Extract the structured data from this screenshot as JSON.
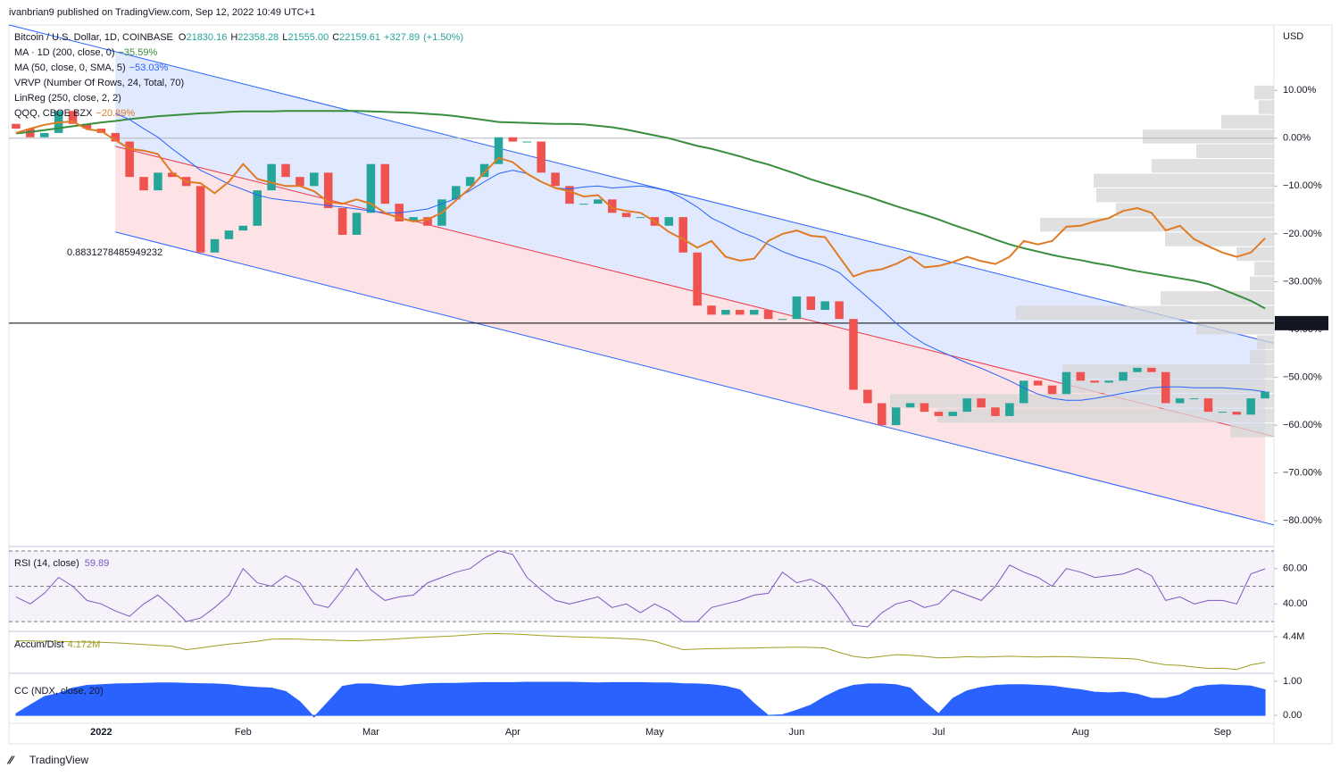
{
  "publisher": "ivanbrian9 published on TradingView.com, Sep 12, 2022 10:49 UTC+1",
  "footer_logo": "TradingView",
  "chart_data": [
    {
      "type": "candlestick",
      "title": "Bitcoin / U.S. Dollar, 1D, COINBASE",
      "ohlc": [
        {
          "label": "O",
          "value": "21830.16"
        },
        {
          "label": "H",
          "value": "22358.28"
        },
        {
          "label": "L",
          "value": "21555.00"
        },
        {
          "label": "C",
          "value": "22159.61"
        }
      ],
      "change": "+327.89",
      "change_pct": "(+1.50%)",
      "currency": "USD",
      "categories": [
        null,
        null,
        null,
        null,
        null,
        null,
        "2022",
        null,
        null,
        null,
        null,
        null,
        null,
        null,
        null,
        null,
        "Feb",
        null,
        null,
        null,
        null,
        null,
        null,
        null,
        null,
        "Mar",
        null,
        null,
        null,
        null,
        null,
        null,
        null,
        null,
        null,
        "Apr",
        null,
        null,
        null,
        null,
        null,
        null,
        null,
        null,
        null,
        "May",
        null,
        null,
        null,
        null,
        null,
        null,
        null,
        null,
        null,
        "Jun",
        null,
        null,
        null,
        null,
        null,
        null,
        null,
        null,
        null,
        "Jul",
        null,
        null,
        null,
        null,
        null,
        null,
        null,
        null,
        null,
        "Aug",
        null,
        null,
        null,
        null,
        null,
        null,
        null,
        null,
        null,
        "Sep",
        null,
        null,
        null
      ],
      "open": [
        3.0,
        2.0,
        0.2,
        1.1,
        5.7,
        3.0,
        2.0,
        1.1,
        -0.7,
        -8.1,
        -10.9,
        -7.2,
        -8.1,
        -10,
        -23.9,
        -21.1,
        -19.3,
        -18.3,
        -10.9,
        -5.4,
        -8.1,
        -10,
        -7.2,
        -14.6,
        -20.2,
        -15.6,
        -5.4,
        -13.7,
        -17.4,
        -16.5,
        -18.3,
        -12.8,
        -10,
        -8.1,
        -5.4,
        0.2,
        -0.7,
        -0.7,
        -7.2,
        -10,
        -13.7,
        -13.7,
        -12.8,
        -15.6,
        -16.5,
        -16.5,
        -18.3,
        -16.5,
        -23.9,
        -35,
        -36.9,
        -35.9,
        -36.9,
        -35.9,
        -37.8,
        -37.8,
        -33.1,
        -35.9,
        -34.1,
        -37.8,
        -52.6,
        -55.4,
        -60,
        -56.3,
        -55.4,
        -57.2,
        -58.1,
        -57.2,
        -54.4,
        -56.3,
        -58.1,
        -55.4,
        -50.7,
        -51.7,
        -53.5,
        -48.9,
        -50.7,
        -51.1,
        -50.7,
        -48.9,
        -48,
        -48.9,
        -55.4,
        -54.4,
        -54.4,
        -57.2,
        -57.2,
        -57.8,
        -54.4
      ],
      "close": [
        2.0,
        0.2,
        1.1,
        5.7,
        3.0,
        2.0,
        1.1,
        -0.7,
        -8.1,
        -10.9,
        -7.2,
        -8.1,
        -10,
        -23.9,
        -21.1,
        -19.3,
        -18.3,
        -10.9,
        -5.4,
        -8.1,
        -10,
        -7.2,
        -14.6,
        -20.2,
        -15.6,
        -5.4,
        -13.7,
        -17.4,
        -16.5,
        -18.3,
        -12.8,
        -10,
        -8.1,
        -5.4,
        0.2,
        -0.7,
        -0.7,
        -7.2,
        -10,
        -13.7,
        -13.7,
        -12.8,
        -15.6,
        -16.5,
        -16.5,
        -18.3,
        -16.5,
        -23.9,
        -35,
        -36.9,
        -35.9,
        -36.9,
        -35.9,
        -37.8,
        -37.8,
        -33.1,
        -35.9,
        -34.1,
        -37.8,
        -52.6,
        -55.4,
        -60,
        -56.3,
        -55.4,
        -57.2,
        -58.1,
        -57.2,
        -54.4,
        -56.3,
        -58.1,
        -55.4,
        -50.7,
        -51.7,
        -53.5,
        -48.9,
        -50.7,
        -51.1,
        -50.7,
        -48.9,
        -48,
        -48.9,
        -55.4,
        -54.4,
        -54.4,
        -57.2,
        -57.2,
        -57.8,
        -54.4,
        -53
      ],
      "up_color": "#26a69a",
      "down_color": "#ef5350",
      "ylim": [
        -85,
        23.3
      ],
      "yticks": [
        {
          "value": 10,
          "label": "10.00%"
        },
        {
          "value": 0,
          "label": "0.00%"
        },
        {
          "value": -10,
          "label": "−10.00%"
        },
        {
          "value": -20,
          "label": "−20.00%"
        },
        {
          "value": -30,
          "label": "−30.00%"
        },
        {
          "value": -40,
          "label": "−40.00%"
        },
        {
          "value": -50,
          "label": "−50.00%"
        },
        {
          "value": -60,
          "label": "−60.00%"
        },
        {
          "value": -70,
          "label": "−70.00%"
        },
        {
          "value": -80,
          "label": "−80.00%"
        }
      ],
      "series": [
        {
          "name": "MA · 1D (200, close, 0)",
          "color": "#388e3c",
          "width": 2,
          "value_label": "−35.59%",
          "values": [
            1.0,
            1.3,
            1.7,
            2.1,
            2.5,
            2.9,
            3.3,
            3.6,
            4.0,
            4.3,
            4.6,
            4.8,
            5.0,
            5.2,
            5.3,
            5.5,
            5.6,
            5.6,
            5.6,
            5.7,
            5.7,
            5.7,
            5.7,
            5.7,
            5.7,
            5.6,
            5.5,
            5.4,
            5.3,
            5.1,
            4.9,
            4.6,
            4.2,
            3.8,
            3.4,
            3.3,
            3.2,
            3.1,
            3.0,
            3.0,
            2.9,
            2.6,
            2.3,
            1.8,
            1.2,
            0.6,
            0.0,
            -0.8,
            -1.6,
            -2.2,
            -3.0,
            -3.8,
            -4.7,
            -5.5,
            -6.5,
            -7.5,
            -8.6,
            -9.5,
            -10.4,
            -11.3,
            -12.2,
            -13.2,
            -14.2,
            -15.1,
            -16.0,
            -17.0,
            -18.1,
            -19.1,
            -20.1,
            -21.2,
            -22.2,
            -23.0,
            -23.7,
            -24.4,
            -25.0,
            -25.5,
            -26.1,
            -26.6,
            -27.2,
            -27.8,
            -28.3,
            -28.8,
            -29.3,
            -29.8,
            -30.5,
            -31.6,
            -32.8,
            -34.0,
            -35.59
          ]
        },
        {
          "name": "MA (50, close, 0, SMA, 5)",
          "color": "#2962ff",
          "width": 1,
          "value_label": "−53.03%",
          "values": [
            null,
            null,
            null,
            null,
            null,
            null,
            null,
            5.2,
            3.9,
            2,
            0.2,
            -2.2,
            -4.4,
            -6.7,
            -8.1,
            -9.6,
            -10.7,
            -11.9,
            -12.6,
            -13,
            -13.3,
            -13.7,
            -14.1,
            -14.4,
            -14.8,
            -15.2,
            -15.6,
            -15.6,
            -15.2,
            -14.8,
            -13.7,
            -12.6,
            -10.9,
            -9.1,
            -7.4,
            -6.7,
            -7.4,
            -9.1,
            -10.4,
            -10.6,
            -10.2,
            -10,
            -10.4,
            -10.2,
            -10,
            -10.4,
            -11.1,
            -12.6,
            -14.4,
            -16.7,
            -18.1,
            -19.6,
            -20.7,
            -22.2,
            -23.7,
            -24.8,
            -25.7,
            -26.7,
            -28.1,
            -30.7,
            -33.3,
            -35.9,
            -38.7,
            -41.1,
            -43,
            -44.4,
            -45.7,
            -47,
            -48.1,
            -49.4,
            -50.7,
            -52.2,
            -53.5,
            -54.4,
            -54.8,
            -54.8,
            -54.4,
            -53.9,
            -53.3,
            -52.8,
            -52.2,
            -52,
            -52,
            -52.2,
            -52.2,
            -52.2,
            -52.4,
            -52.6,
            -53.03
          ]
        },
        {
          "name": "QQQ, CBOE BZX",
          "color": "#e07b24",
          "width": 2,
          "value_label": "−20.89%",
          "values": [
            1.1,
            2,
            2.8,
            3.3,
            3.5,
            1.9,
            1.5,
            -0.4,
            -2.2,
            -2.6,
            -3.3,
            -7.2,
            -9.1,
            -9.4,
            -11.5,
            -9.1,
            -5.4,
            -8.5,
            -9.3,
            -10,
            -10,
            -11.1,
            -13.3,
            -13.7,
            -12.8,
            -13.7,
            -15.6,
            -16.7,
            -17.4,
            -17,
            -15.6,
            -13,
            -10.4,
            -7.2,
            -4.1,
            -5,
            -7.4,
            -9.1,
            -10.4,
            -11.1,
            -12.2,
            -11.9,
            -14.6,
            -15.2,
            -15.6,
            -17.4,
            -19.6,
            -21.1,
            -22.9,
            -21.5,
            -24.8,
            -25.6,
            -25.2,
            -21.5,
            -20,
            -19.3,
            -20.4,
            -20.7,
            -24.8,
            -28.9,
            -27.8,
            -27.4,
            -26.3,
            -24.8,
            -27,
            -26.7,
            -25.9,
            -24.8,
            -25.7,
            -26.3,
            -24.8,
            -21.5,
            -22.2,
            -21.5,
            -18.5,
            -18.3,
            -17.4,
            -16.7,
            -15.2,
            -14.6,
            -15.6,
            -19.3,
            -18.3,
            -21.1,
            -22.6,
            -23.9,
            -24.8,
            -23.9,
            -20.89
          ]
        }
      ],
      "vrvp": {
        "name": "VRVP (Number Of Rows, 24, Total, 70)",
        "range": [
          -62.6,
          11.1
        ],
        "color": "#d6d6d6",
        "rows": [
          22,
          17,
          59,
          147,
          87,
          137,
          202,
          199,
          177,
          262,
          122,
          42,
          22,
          27,
          127,
          289,
          87,
          19,
          27,
          237,
          237,
          430,
          377,
          49
        ]
      },
      "linreg": {
        "name": "LinReg (250, close, 2, 2)",
        "upper": [
          18.1,
          -42.4
        ],
        "mid": [
          -1.7,
          -61.9
        ],
        "lower": [
          -19.6,
          -80.4
        ],
        "pearson": 0.8831278485949232
      },
      "hline": {
        "value": -38.67,
        "label": "−38.67%"
      }
    },
    {
      "type": "line",
      "name": "RSI (14, close)",
      "color": "#7e57c2",
      "ylim": [
        25,
        72.5
      ],
      "bands": [
        30,
        50,
        70
      ],
      "yticks": [
        {
          "value": 60,
          "label": "60.00"
        },
        {
          "value": 40,
          "label": "40.00"
        }
      ],
      "values": [
        44,
        40,
        46,
        55,
        50,
        42,
        40,
        36,
        33,
        40,
        45,
        38,
        30,
        32,
        38,
        45,
        60,
        52,
        50,
        56,
        52,
        40,
        38,
        48,
        60,
        48,
        42,
        44,
        45,
        52,
        55,
        58,
        60,
        66,
        70,
        68,
        55,
        48,
        42,
        40,
        42,
        44,
        38,
        40,
        35,
        40,
        36,
        30,
        30,
        38,
        40,
        42,
        45,
        46,
        58,
        52,
        54,
        50,
        40,
        28,
        27,
        35,
        40,
        42,
        38,
        40,
        48,
        45,
        42,
        50,
        62,
        58,
        55,
        50,
        60,
        58,
        55,
        56,
        57,
        60,
        56,
        42,
        44,
        40,
        42,
        42,
        40,
        57,
        59.89
      ]
    },
    {
      "type": "line",
      "name": "Accum/Dist",
      "color": "#9e9d24",
      "ylim": [
        4.09,
        4.44
      ],
      "value_label": "4.172M",
      "yticks": [
        {
          "value": 4.4,
          "label": "4.4M"
        }
      ],
      "values": [
        4.364,
        4.362,
        4.36,
        4.358,
        4.355,
        4.352,
        4.35,
        4.345,
        4.338,
        4.33,
        4.322,
        4.316,
        4.285,
        4.3,
        4.318,
        4.334,
        4.345,
        4.36,
        4.378,
        4.38,
        4.378,
        4.372,
        4.37,
        4.366,
        4.364,
        4.37,
        4.375,
        4.382,
        4.39,
        4.396,
        4.402,
        4.408,
        4.418,
        4.426,
        4.428,
        4.424,
        4.418,
        4.41,
        4.405,
        4.4,
        4.396,
        4.392,
        4.388,
        4.382,
        4.376,
        4.36,
        4.32,
        4.285,
        4.29,
        4.294,
        4.296,
        4.298,
        4.3,
        4.302,
        4.305,
        4.307,
        4.305,
        4.3,
        4.26,
        4.225,
        4.21,
        4.225,
        4.24,
        4.235,
        4.225,
        4.212,
        4.215,
        4.222,
        4.218,
        4.222,
        4.226,
        4.222,
        4.22,
        4.224,
        4.222,
        4.218,
        4.214,
        4.21,
        4.206,
        4.2,
        4.17,
        4.15,
        4.145,
        4.13,
        4.118,
        4.12,
        4.108,
        4.15,
        4.172
      ]
    },
    {
      "type": "area",
      "name": "CC (NDX, close, 20)",
      "color": "#2962ff",
      "ylim": [
        -0.18,
        1.18
      ],
      "yticks": [
        {
          "value": 1,
          "label": "1.00"
        },
        {
          "value": 0,
          "label": "0.00"
        }
      ],
      "values": [
        0.05,
        0.3,
        0.55,
        0.65,
        0.8,
        0.88,
        0.9,
        0.92,
        0.93,
        0.94,
        0.95,
        0.95,
        0.94,
        0.93,
        0.92,
        0.9,
        0.85,
        0.82,
        0.8,
        0.7,
        0.4,
        -0.05,
        0.4,
        0.85,
        0.92,
        0.92,
        0.88,
        0.85,
        0.9,
        0.93,
        0.94,
        0.94,
        0.95,
        0.96,
        0.96,
        0.96,
        0.97,
        0.97,
        0.97,
        0.97,
        0.96,
        0.95,
        0.96,
        0.96,
        0.96,
        0.95,
        0.95,
        0.93,
        0.92,
        0.9,
        0.85,
        0.75,
        0.35,
        0.0,
        0.02,
        0.15,
        0.3,
        0.55,
        0.75,
        0.88,
        0.92,
        0.92,
        0.9,
        0.8,
        0.4,
        0.05,
        0.5,
        0.72,
        0.82,
        0.88,
        0.9,
        0.9,
        0.88,
        0.86,
        0.8,
        0.75,
        0.68,
        0.66,
        0.68,
        0.62,
        0.5,
        0.5,
        0.6,
        0.82,
        0.88,
        0.9,
        0.88,
        0.86,
        0.75
      ]
    }
  ]
}
